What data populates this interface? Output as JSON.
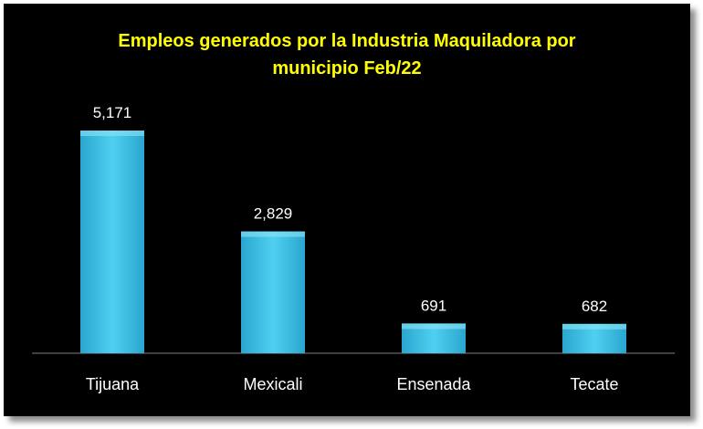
{
  "chart_data": {
    "type": "bar",
    "title_line1": "Empleos generados por la Industria Maquiladora por",
    "title_line2": "municipio Feb/22",
    "categories": [
      "Tijuana",
      "Mexicali",
      "Ensenada",
      "Tecate"
    ],
    "values": [
      5171,
      2829,
      691,
      682
    ],
    "value_labels": [
      "5,171",
      "2,829",
      "691",
      "682"
    ],
    "ylim": [
      0,
      6000
    ],
    "grid": false,
    "legend": "none",
    "colors": {
      "background": "#000000",
      "bar": "#3fc3e6",
      "title": "#ffff00",
      "text": "#ffffff"
    }
  }
}
